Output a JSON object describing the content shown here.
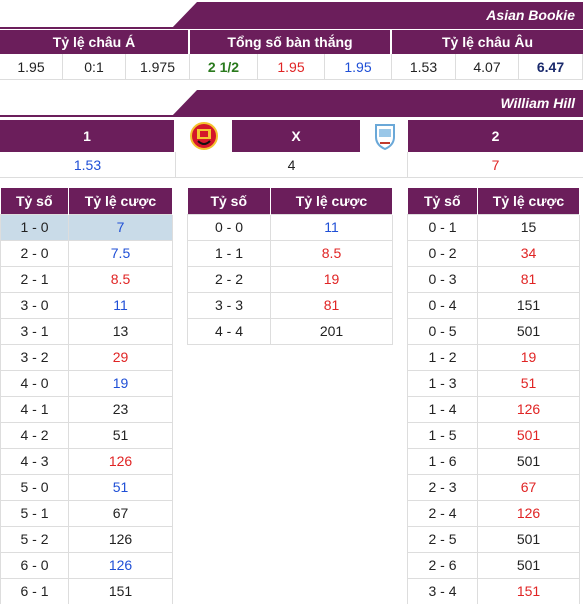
{
  "asian_bookie": {
    "title": "Asian Bookie",
    "headers": [
      "Tỷ lệ châu Á",
      "Tổng số bàn thắng",
      "Tỷ lệ châu Âu"
    ],
    "asian": [
      "1.95",
      "0:1",
      "1.975"
    ],
    "total_goals": [
      "2 1/2",
      "1.95",
      "1.95"
    ],
    "european": [
      "1.53",
      "4.07",
      "6.47"
    ]
  },
  "william_hill": {
    "title": "William Hill",
    "header": {
      "home": "1",
      "draw": "X",
      "away": "2"
    },
    "odds": {
      "home": "1.53",
      "draw": "4",
      "away": "7"
    },
    "home_crest_icon": "manchester-united-crest-icon",
    "away_crest_icon": "celta-vigo-crest-icon"
  },
  "score_table_headers": {
    "score": "Tỷ số",
    "odds": "Tỷ lệ cược"
  },
  "home_wins": [
    {
      "score": "1 - 0",
      "odds": "7",
      "color": "blue",
      "highlight": true
    },
    {
      "score": "2 - 0",
      "odds": "7.5",
      "color": "blue"
    },
    {
      "score": "2 - 1",
      "odds": "8.5",
      "color": "red"
    },
    {
      "score": "3 - 0",
      "odds": "11",
      "color": "blue"
    },
    {
      "score": "3 - 1",
      "odds": "13",
      "color": "black"
    },
    {
      "score": "3 - 2",
      "odds": "29",
      "color": "red"
    },
    {
      "score": "4 - 0",
      "odds": "19",
      "color": "blue"
    },
    {
      "score": "4 - 1",
      "odds": "23",
      "color": "black"
    },
    {
      "score": "4 - 2",
      "odds": "51",
      "color": "black"
    },
    {
      "score": "4 - 3",
      "odds": "126",
      "color": "red"
    },
    {
      "score": "5 - 0",
      "odds": "51",
      "color": "blue"
    },
    {
      "score": "5 - 1",
      "odds": "67",
      "color": "black"
    },
    {
      "score": "5 - 2",
      "odds": "126",
      "color": "black"
    },
    {
      "score": "6 - 0",
      "odds": "126",
      "color": "blue"
    },
    {
      "score": "6 - 1",
      "odds": "151",
      "color": "black"
    }
  ],
  "draws": [
    {
      "score": "0 - 0",
      "odds": "11",
      "color": "blue"
    },
    {
      "score": "1 - 1",
      "odds": "8.5",
      "color": "red"
    },
    {
      "score": "2 - 2",
      "odds": "19",
      "color": "red"
    },
    {
      "score": "3 - 3",
      "odds": "81",
      "color": "red"
    },
    {
      "score": "4 - 4",
      "odds": "201",
      "color": "black"
    }
  ],
  "away_wins": [
    {
      "score": "0 - 1",
      "odds": "15",
      "color": "black"
    },
    {
      "score": "0 - 2",
      "odds": "34",
      "color": "red"
    },
    {
      "score": "0 - 3",
      "odds": "81",
      "color": "red"
    },
    {
      "score": "0 - 4",
      "odds": "151",
      "color": "black"
    },
    {
      "score": "0 - 5",
      "odds": "501",
      "color": "black"
    },
    {
      "score": "1 - 2",
      "odds": "19",
      "color": "red"
    },
    {
      "score": "1 - 3",
      "odds": "51",
      "color": "red"
    },
    {
      "score": "1 - 4",
      "odds": "126",
      "color": "red"
    },
    {
      "score": "1 - 5",
      "odds": "501",
      "color": "red"
    },
    {
      "score": "1 - 6",
      "odds": "501",
      "color": "black"
    },
    {
      "score": "2 - 3",
      "odds": "67",
      "color": "red"
    },
    {
      "score": "2 - 4",
      "odds": "126",
      "color": "red"
    },
    {
      "score": "2 - 5",
      "odds": "501",
      "color": "black"
    },
    {
      "score": "2 - 6",
      "odds": "501",
      "color": "black"
    },
    {
      "score": "3 - 4",
      "odds": "151",
      "color": "red"
    }
  ]
}
